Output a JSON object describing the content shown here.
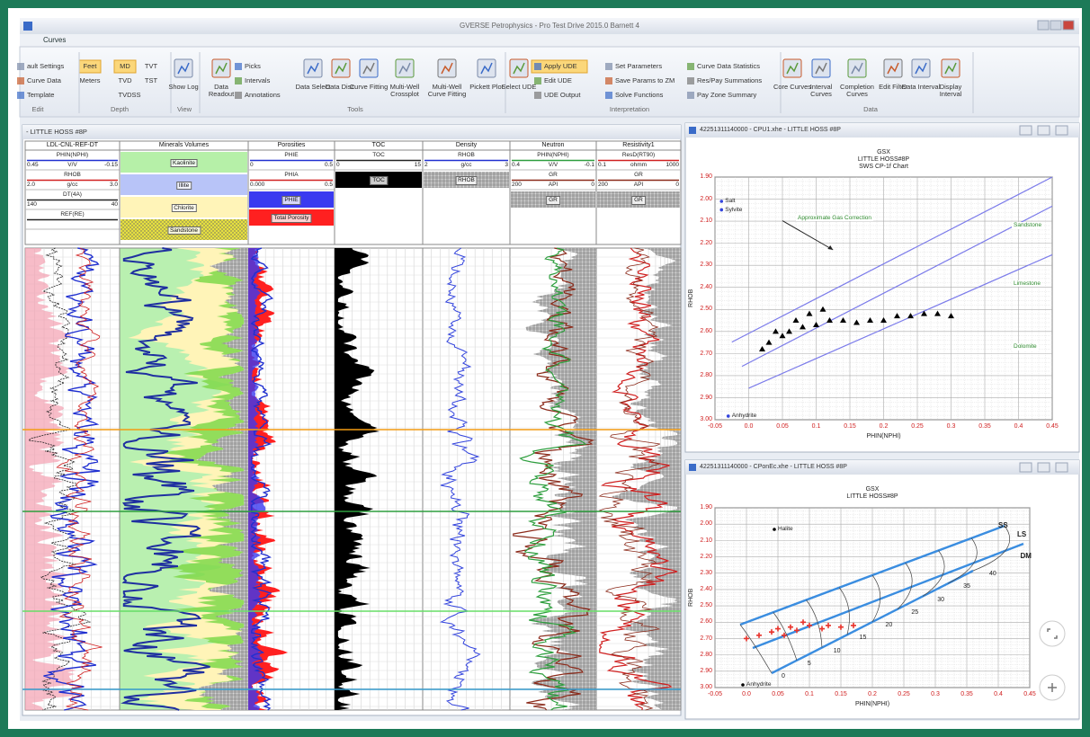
{
  "window": {
    "title": "GVERSE Petrophysics - Pro Test Drive 2015.0 Barnett 4",
    "tab": "Curves"
  },
  "ribbon": {
    "buttons": [
      "ault Settings",
      "Curve Data",
      "Template",
      "Feet",
      "Meters",
      "MD",
      "TVD",
      "TVDSS",
      "TVT",
      "TST",
      "Show Log",
      "Data Readout",
      "Picks",
      "Intervals",
      "Annotations",
      "Data Select",
      "Data Disc.",
      "Curve Fitting",
      "Multi-Well Crossplot",
      "Multi-Well Curve Fitting",
      "Pickett Plot",
      "Select UDE",
      "Apply UDE",
      "Edit UDE",
      "UDE Output",
      "Set Parameters",
      "Save Params to ZM",
      "Solve Functions",
      "Curve Data Statistics",
      "Res/Pay Summations",
      "Pay Zone Summary",
      "Core Curves",
      "Interval Curves",
      "Completion Curves",
      "Edit Filter",
      "Data Interval",
      "Display Interval"
    ],
    "groups": [
      "Edit",
      "Depth",
      "View",
      "Tools",
      "Interpretation",
      "Data"
    ]
  },
  "log_view": {
    "title": "- LITTLE HOSS #8P",
    "tracks": [
      {
        "name": "LDL-CNL-REF-DT",
        "curves": [
          {
            "name": "PHIN(NPHI)",
            "color": "#2030d0",
            "left": "0.45",
            "unit": "V/V",
            "right": "-0.15"
          },
          {
            "name": "RHOB",
            "color": "#d02020",
            "left": "2.0",
            "unit": "g/cc",
            "right": "3.0"
          },
          {
            "name": "DT(4A)",
            "color": "#222222",
            "left": "140",
            "right": "40"
          },
          {
            "name": "REF(RE)",
            "color": "#222222"
          }
        ],
        "fills": []
      },
      {
        "name": "Minerals Volumes",
        "curves": [],
        "fills": [
          {
            "label": "Kaolinite",
            "color": "#b6f0a8"
          },
          {
            "label": "Illite",
            "color": "#b8c4f8"
          },
          {
            "label": "Chlorite",
            "color": "#fff4b8"
          },
          {
            "label": "Sandstone",
            "color": "#d8d84a"
          }
        ]
      },
      {
        "name": "Porosities",
        "curves": [
          {
            "name": "PHIE",
            "color": "#2030d0",
            "left": "0",
            "right": "0.5"
          },
          {
            "name": "PHIA",
            "color": "#d02020",
            "left": "0.000",
            "right": "0.5"
          }
        ],
        "fills": [
          {
            "label": "PHIE",
            "color": "#3a3af0"
          },
          {
            "label": "Total Porosity",
            "color": "#ff2020"
          }
        ]
      },
      {
        "name": "TOC",
        "curves": [
          {
            "name": "TOC",
            "color": "#222222",
            "left": "0",
            "right": "15"
          }
        ],
        "fills": [
          {
            "label": "TOC",
            "color": "#000000"
          }
        ]
      },
      {
        "name": "Density",
        "curves": [
          {
            "name": "RHOB",
            "color": "#2030d0",
            "left": "2",
            "unit": "g/cc",
            "right": "3"
          }
        ],
        "fills": [
          {
            "label": "RHOB",
            "color": "#999999"
          }
        ]
      },
      {
        "name": "Neutron",
        "curves": [
          {
            "name": "PHIN(NPHI)",
            "color": "#2e9e3e",
            "left": "0.4",
            "unit": "V/V",
            "right": "-0.1"
          },
          {
            "name": "GR",
            "color": "#8b2a1a",
            "left": "200",
            "unit": "API",
            "right": "0"
          }
        ],
        "fills": [
          {
            "label": "GR",
            "color": "#999999"
          }
        ]
      },
      {
        "name": "Resistivity1",
        "curves": [
          {
            "name": "ResD(RT90)",
            "color": "#d02020",
            "left": "0.1",
            "unit": "ohmm",
            "right": "1000"
          },
          {
            "name": "GR",
            "color": "#8b2a1a",
            "left": "200",
            "unit": "API",
            "right": "0"
          }
        ],
        "fills": [
          {
            "label": "GR",
            "color": "#999999"
          }
        ]
      }
    ]
  },
  "crossplots": [
    {
      "title": "42251311140000 - CPU1.xhe - LITTLE HOSS #8P",
      "heading": [
        "GSX",
        "LITTLE HOSS#8P",
        "SWS CP-1f Chart"
      ],
      "x_label": "PHIN(NPHI)",
      "y_label": "RHOB",
      "xlim": [
        -0.05,
        0.45
      ],
      "ylim": [
        1.9,
        3.0
      ],
      "y_inverted": true,
      "xticks": [
        -0.05,
        {
          "value": 0,
          "label": "0.0"
        },
        0.05,
        0.1,
        0.15,
        0.2,
        0.25,
        0.3,
        0.35,
        0.4,
        0.45
      ],
      "yticks": [
        {
          "value": 1.9,
          "label": "1.90"
        },
        {
          "value": 2.0,
          "label": "2.00"
        },
        {
          "value": 2.1,
          "label": "2.10"
        },
        {
          "value": 2.2,
          "label": "2.20"
        },
        {
          "value": 2.3,
          "label": "2.30"
        },
        {
          "value": 2.4,
          "label": "2.40"
        },
        {
          "value": 2.5,
          "label": "2.50"
        },
        {
          "value": 2.6,
          "label": "2.60"
        },
        {
          "value": 2.7,
          "label": "2.70"
        },
        {
          "value": 2.8,
          "label": "2.80"
        },
        {
          "value": 2.9,
          "label": "2.90"
        },
        {
          "value": 3.0,
          "label": "3.00"
        }
      ],
      "labels": [
        "Salt",
        "Sylvite",
        "Approximate Gas Correction",
        "Sandstone",
        "Limestone",
        "Dolomite",
        "Anhydrite"
      ],
      "points": {
        "marker": "triangle",
        "color": "#000000",
        "x": [
          0.02,
          0.03,
          0.05,
          0.06,
          0.08,
          0.1,
          0.12,
          0.14,
          0.16,
          0.18,
          0.2,
          0.22,
          0.24,
          0.26,
          0.28,
          0.3,
          0.04,
          0.07,
          0.09,
          0.11
        ],
        "y": [
          2.68,
          2.65,
          2.62,
          2.6,
          2.58,
          2.57,
          2.55,
          2.55,
          2.56,
          2.55,
          2.55,
          2.53,
          2.53,
          2.52,
          2.52,
          2.53,
          2.6,
          2.55,
          2.52,
          2.5
        ]
      }
    },
    {
      "title": "42251311140000 - CPonEc.xhe - LITTLE HOSS #8P",
      "heading": [
        "GSX",
        "LITTLE HOSS#8P"
      ],
      "x_label": "PHIN(NPHI)",
      "y_label": "RHOB",
      "xlim": [
        -0.05,
        0.45
      ],
      "ylim": [
        1.9,
        3.0
      ],
      "y_inverted": true,
      "xticks": [
        -0.05,
        {
          "value": 0,
          "label": "0.0"
        },
        0.05,
        0.1,
        0.15,
        0.2,
        0.25,
        0.3,
        0.35,
        0.4,
        0.45
      ],
      "yticks": [
        {
          "value": 1.9,
          "label": "1.90"
        },
        {
          "value": 2.0,
          "label": "2.00"
        },
        {
          "value": 2.1,
          "label": "2.10"
        },
        {
          "value": 2.2,
          "label": "2.20"
        },
        {
          "value": 2.3,
          "label": "2.30"
        },
        {
          "value": 2.4,
          "label": "2.40"
        },
        {
          "value": 2.5,
          "label": "2.50"
        },
        {
          "value": 2.6,
          "label": "2.60"
        },
        {
          "value": 2.7,
          "label": "2.70"
        },
        {
          "value": 2.8,
          "label": "2.80"
        },
        {
          "value": 2.9,
          "label": "2.90"
        },
        {
          "value": 3.0,
          "label": "3.00"
        }
      ],
      "labels": [
        "Halite",
        "Anhydrite",
        "SS",
        "LS",
        "DM"
      ],
      "line_labels": [
        "0",
        "5",
        "10",
        "15",
        "20",
        "25",
        "30",
        "35",
        "40"
      ],
      "points": {
        "marker": "cross",
        "color": "#e8322a",
        "x": [
          0.0,
          0.02,
          0.04,
          0.05,
          0.07,
          0.08,
          0.1,
          0.12,
          0.13,
          0.15,
          0.17,
          0.06,
          0.09
        ],
        "y": [
          2.7,
          2.68,
          2.66,
          2.64,
          2.63,
          2.65,
          2.62,
          2.64,
          2.62,
          2.63,
          2.62,
          2.68,
          2.6
        ]
      }
    }
  ]
}
